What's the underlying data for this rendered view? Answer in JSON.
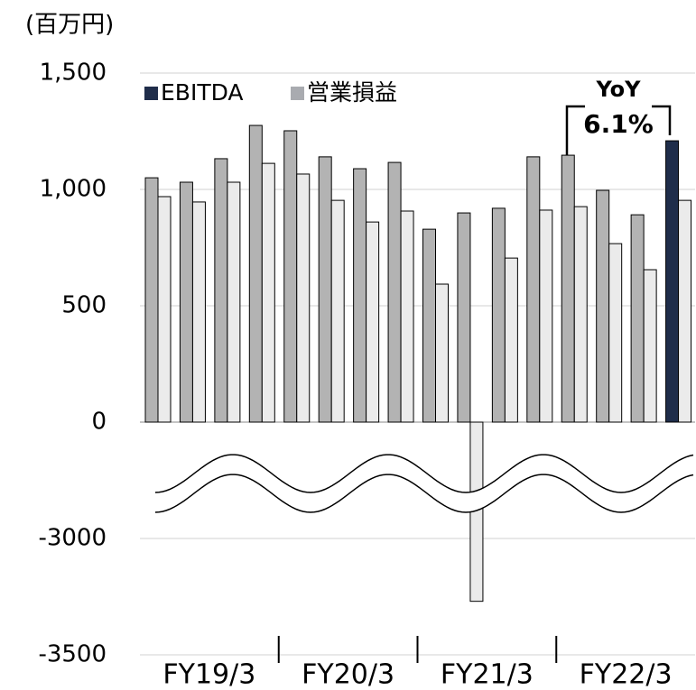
{
  "chart_data": {
    "type": "bar",
    "unit_label": "(百万円)",
    "categories": [
      null,
      null,
      null,
      null,
      null,
      null,
      null,
      null,
      null,
      null,
      null,
      null,
      null,
      null,
      null,
      null
    ],
    "groups": [
      "FY19/3",
      "FY20/3",
      "FY21/3",
      "FY22/3"
    ],
    "series": [
      {
        "name": "EBITDA",
        "color": "#1f2d4a",
        "bar_colors": [
          "#b3b3b3",
          "#b3b3b3",
          "#b3b3b3",
          "#b3b3b3",
          "#b3b3b3",
          "#b3b3b3",
          "#b3b3b3",
          "#b3b3b3",
          "#b3b3b3",
          "#b3b3b3",
          "#b3b3b3",
          "#b3b3b3",
          "#b3b3b3",
          "#b3b3b3",
          "#b3b3b3",
          "#1f2d4a"
        ],
        "values": [
          1050,
          1031,
          1132,
          1275,
          1252,
          1140,
          1089,
          1116,
          829,
          899,
          919,
          1140,
          1147,
          996,
          891,
          1209
        ]
      },
      {
        "name": "営業損益",
        "color": "#a9abb0",
        "bar_colors": [
          "#ebebeb",
          "#ebebeb",
          "#ebebeb",
          "#ebebeb",
          "#ebebeb",
          "#ebebeb",
          "#ebebeb",
          "#ebebeb",
          "#ebebeb",
          "#ebebeb",
          "#ebebeb",
          "#ebebeb",
          "#ebebeb",
          "#ebebeb",
          "#ebebeb",
          "#ebebeb"
        ],
        "values": [
          969,
          946,
          1031,
          1112,
          1066,
          953,
          860,
          907,
          593,
          -3270,
          705,
          911,
          926,
          767,
          655,
          953
        ]
      }
    ],
    "ylim": [
      -3500,
      1500
    ],
    "yticks": [
      -3500,
      -3000,
      0,
      {
        "value": 500,
        "label": "500"
      },
      {
        "value": 1000,
        "label": "1,000"
      },
      {
        "value": 1500,
        "label": "1,500"
      }
    ],
    "axis_break": true,
    "negative_tick_color": "#ff0000",
    "grid": true,
    "annotation": {
      "label": "YoY",
      "value": "6.1%",
      "color": "#f04e3e"
    }
  }
}
